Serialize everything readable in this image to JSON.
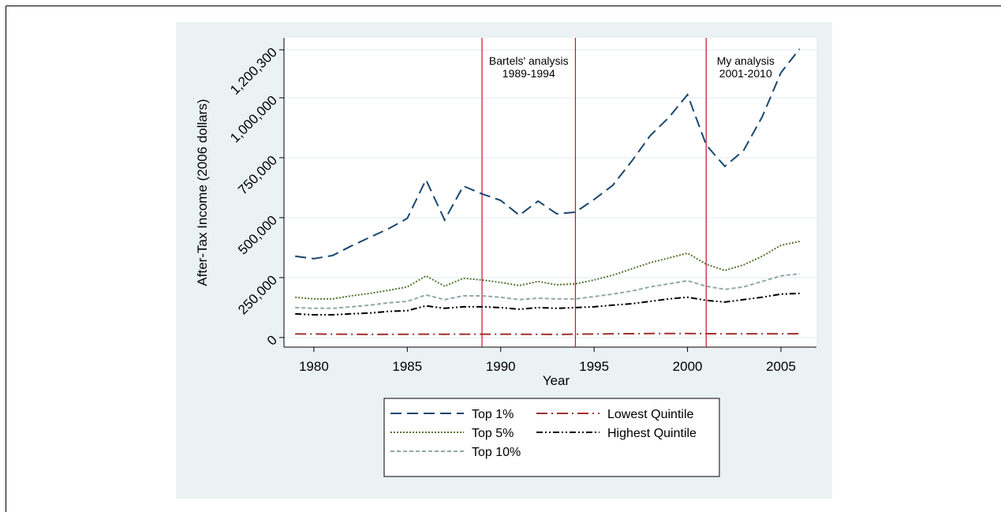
{
  "chart_data": {
    "type": "line",
    "y_label": "After-Tax Income (2006 dollars)",
    "x_label": "Year",
    "x": [
      1979,
      1980,
      1981,
      1982,
      1983,
      1984,
      1985,
      1986,
      1987,
      1988,
      1989,
      1990,
      1991,
      1992,
      1993,
      1994,
      1995,
      1996,
      1997,
      1998,
      1999,
      2000,
      2001,
      2002,
      2003,
      2004,
      2005,
      2006
    ],
    "series": [
      {
        "name": "Top 1%",
        "color": "#1a476f",
        "dash": "14 7",
        "width": 2,
        "values": [
          339000,
          329000,
          342000,
          382000,
          418000,
          454000,
          497000,
          658000,
          490000,
          632000,
          599000,
          572000,
          510000,
          569000,
          516000,
          523000,
          576000,
          635000,
          734000,
          842000,
          918000,
          1013000,
          803000,
          714000,
          780000,
          921000,
          1105000,
          1204000
        ]
      },
      {
        "name": "Lowest Quintile",
        "color": "#a0302d",
        "dash": "14 5 2 5",
        "width": 2,
        "values": [
          15000,
          14500,
          14000,
          13500,
          13000,
          13500,
          13500,
          14000,
          13500,
          14000,
          14000,
          14000,
          13500,
          13500,
          13000,
          14000,
          15000,
          15500,
          16000,
          16500,
          17000,
          17000,
          16000,
          15500,
          15500,
          15500,
          15500,
          16000
        ]
      },
      {
        "name": "Top 5%",
        "color": "#55752f",
        "dash": "2 2",
        "width": 2,
        "values": [
          168000,
          161000,
          161000,
          174000,
          184000,
          197000,
          211000,
          257000,
          214000,
          247000,
          240000,
          230000,
          217000,
          234000,
          220000,
          224000,
          240000,
          260000,
          286000,
          312000,
          332000,
          352000,
          306000,
          280000,
          303000,
          339000,
          385000,
          401000
        ]
      },
      {
        "name": "Highest Quintile",
        "color": "#000000",
        "dash": "8 3 2 3 2 3",
        "width": 2,
        "values": [
          99000,
          95000,
          95000,
          99000,
          102000,
          109000,
          112000,
          132000,
          122000,
          128000,
          128000,
          125000,
          118000,
          125000,
          122000,
          125000,
          128000,
          135000,
          141000,
          151000,
          161000,
          168000,
          155000,
          148000,
          158000,
          168000,
          181000,
          184000
        ]
      },
      {
        "name": "Top 10%",
        "color": "#90a8a8",
        "dash": "5 3",
        "width": 2,
        "values": [
          125000,
          122000,
          122000,
          128000,
          135000,
          145000,
          151000,
          178000,
          158000,
          174000,
          174000,
          168000,
          158000,
          164000,
          161000,
          161000,
          171000,
          181000,
          194000,
          211000,
          224000,
          237000,
          214000,
          201000,
          211000,
          234000,
          257000,
          266000
        ]
      }
    ],
    "xlim": [
      1978.4,
      2006.9
    ],
    "xticks": [
      1980,
      1985,
      1990,
      1995,
      2000,
      2005
    ],
    "ylim": [
      -40000,
      1250000
    ],
    "yticks": [
      {
        "value": 0,
        "label": "0"
      },
      {
        "value": 250000,
        "label": "250,000"
      },
      {
        "value": 500000,
        "label": "500,000"
      },
      {
        "value": 750000,
        "label": "750,000"
      },
      {
        "value": 1000000,
        "label": "1,000,000"
      },
      {
        "value": 1200300,
        "label": "1,200,300"
      }
    ],
    "grid": true,
    "vlines": [
      1989,
      1994,
      2001
    ],
    "vline_color": "#c8102e",
    "annotations": [
      [
        "Bartels' analysis",
        "1989-1994"
      ],
      [
        "My analysis",
        "2001-2010"
      ]
    ]
  }
}
